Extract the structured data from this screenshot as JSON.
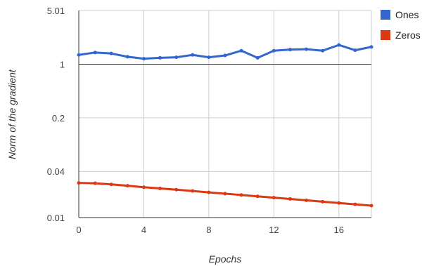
{
  "chart_data": {
    "type": "line",
    "title": "",
    "xlabel": "Epochs",
    "ylabel": "Norm of the gradient",
    "yscale": "log",
    "xlim": [
      0,
      18
    ],
    "ylim": [
      0.01,
      5.01
    ],
    "x_ticks": [
      "0",
      "4",
      "8",
      "12",
      "16"
    ],
    "x_tick_values": [
      0,
      4,
      8,
      12,
      16
    ],
    "y_ticks": [
      "0.01",
      "0.04",
      "0.2",
      "1",
      "5.01"
    ],
    "y_tick_values": [
      0.01,
      0.04,
      0.2,
      1,
      5.01
    ],
    "grid": true,
    "legend_position": "right",
    "reference_line_y": 1,
    "x": [
      0,
      1,
      2,
      3,
      4,
      5,
      6,
      7,
      8,
      9,
      10,
      11,
      12,
      13,
      14,
      15,
      16,
      17,
      18
    ],
    "series": [
      {
        "name": "Ones",
        "color": "#3366cc",
        "values": [
          1.32,
          1.42,
          1.38,
          1.25,
          1.18,
          1.21,
          1.23,
          1.32,
          1.23,
          1.3,
          1.5,
          1.21,
          1.5,
          1.55,
          1.57,
          1.5,
          1.78,
          1.52,
          1.68
        ]
      },
      {
        "name": "Zeros",
        "color": "#dc3912",
        "values": [
          0.0283,
          0.028,
          0.0271,
          0.026,
          0.0249,
          0.024,
          0.0231,
          0.0222,
          0.0213,
          0.0205,
          0.0197,
          0.0189,
          0.0182,
          0.0175,
          0.0168,
          0.0161,
          0.0155,
          0.0149,
          0.0143
        ]
      }
    ]
  }
}
